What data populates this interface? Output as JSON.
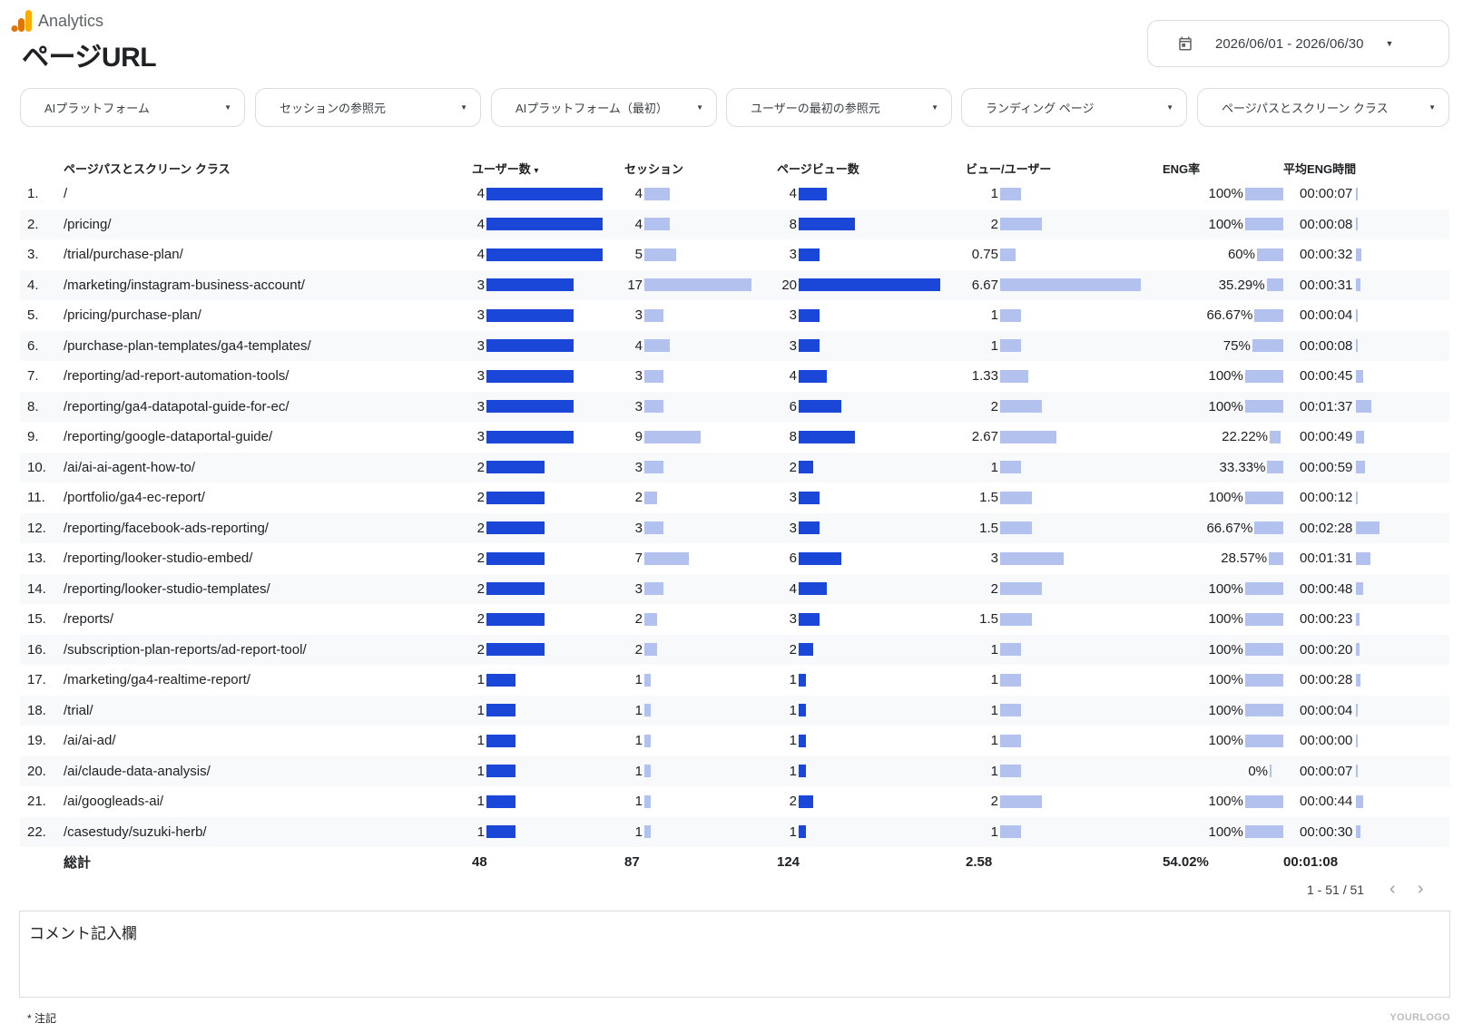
{
  "app": {
    "name": "Analytics"
  },
  "page": {
    "title": "ページURL"
  },
  "date_range": {
    "label": "2026/06/01 - 2026/06/30"
  },
  "filters": [
    "AIプラットフォーム",
    "セッションの参照元",
    "AIプラットフォーム（最初）",
    "ユーザーの最初の参照元",
    "ランディング ページ",
    "ページパスとスクリーン クラス"
  ],
  "table": {
    "headers": [
      "ページパスとスクリーン クラス",
      "ユーザー数",
      "セッション",
      "ページビュー数",
      "ビュー/ユーザー",
      "ENG率",
      "平均ENG時間"
    ],
    "sort_indicator": "▾",
    "rows": [
      {
        "idx": "1.",
        "path": "/",
        "users": "4",
        "sessions": "4",
        "views": "4",
        "vpu": "1",
        "eng": "100%",
        "time": "00:00:07"
      },
      {
        "idx": "2.",
        "path": "/pricing/",
        "users": "4",
        "sessions": "4",
        "views": "8",
        "vpu": "2",
        "eng": "100%",
        "time": "00:00:08"
      },
      {
        "idx": "3.",
        "path": "/trial/purchase-plan/",
        "users": "4",
        "sessions": "5",
        "views": "3",
        "vpu": "0.75",
        "eng": "60%",
        "time": "00:00:32"
      },
      {
        "idx": "4.",
        "path": "/marketing/instagram-business-account/",
        "users": "3",
        "sessions": "17",
        "views": "20",
        "vpu": "6.67",
        "eng": "35.29%",
        "time": "00:00:31"
      },
      {
        "idx": "5.",
        "path": "/pricing/purchase-plan/",
        "users": "3",
        "sessions": "3",
        "views": "3",
        "vpu": "1",
        "eng": "66.67%",
        "time": "00:00:04"
      },
      {
        "idx": "6.",
        "path": "/purchase-plan-templates/ga4-templates/",
        "users": "3",
        "sessions": "4",
        "views": "3",
        "vpu": "1",
        "eng": "75%",
        "time": "00:00:08"
      },
      {
        "idx": "7.",
        "path": "/reporting/ad-report-automation-tools/",
        "users": "3",
        "sessions": "3",
        "views": "4",
        "vpu": "1.33",
        "eng": "100%",
        "time": "00:00:45"
      },
      {
        "idx": "8.",
        "path": "/reporting/ga4-datapotal-guide-for-ec/",
        "users": "3",
        "sessions": "3",
        "views": "6",
        "vpu": "2",
        "eng": "100%",
        "time": "00:01:37"
      },
      {
        "idx": "9.",
        "path": "/reporting/google-dataportal-guide/",
        "users": "3",
        "sessions": "9",
        "views": "8",
        "vpu": "2.67",
        "eng": "22.22%",
        "time": "00:00:49"
      },
      {
        "idx": "10.",
        "path": "/ai/ai-ai-agent-how-to/",
        "users": "2",
        "sessions": "3",
        "views": "2",
        "vpu": "1",
        "eng": "33.33%",
        "time": "00:00:59"
      },
      {
        "idx": "11.",
        "path": "/portfolio/ga4-ec-report/",
        "users": "2",
        "sessions": "2",
        "views": "3",
        "vpu": "1.5",
        "eng": "100%",
        "time": "00:00:12"
      },
      {
        "idx": "12.",
        "path": "/reporting/facebook-ads-reporting/",
        "users": "2",
        "sessions": "3",
        "views": "3",
        "vpu": "1.5",
        "eng": "66.67%",
        "time": "00:02:28"
      },
      {
        "idx": "13.",
        "path": "/reporting/looker-studio-embed/",
        "users": "2",
        "sessions": "7",
        "views": "6",
        "vpu": "3",
        "eng": "28.57%",
        "time": "00:01:31"
      },
      {
        "idx": "14.",
        "path": "/reporting/looker-studio-templates/",
        "users": "2",
        "sessions": "3",
        "views": "4",
        "vpu": "2",
        "eng": "100%",
        "time": "00:00:48"
      },
      {
        "idx": "15.",
        "path": "/reports/",
        "users": "2",
        "sessions": "2",
        "views": "3",
        "vpu": "1.5",
        "eng": "100%",
        "time": "00:00:23"
      },
      {
        "idx": "16.",
        "path": "/subscription-plan-reports/ad-report-tool/",
        "users": "2",
        "sessions": "2",
        "views": "2",
        "vpu": "1",
        "eng": "100%",
        "time": "00:00:20"
      },
      {
        "idx": "17.",
        "path": "/marketing/ga4-realtime-report/",
        "users": "1",
        "sessions": "1",
        "views": "1",
        "vpu": "1",
        "eng": "100%",
        "time": "00:00:28"
      },
      {
        "idx": "18.",
        "path": "/trial/",
        "users": "1",
        "sessions": "1",
        "views": "1",
        "vpu": "1",
        "eng": "100%",
        "time": "00:00:04"
      },
      {
        "idx": "19.",
        "path": "/ai/ai-ad/",
        "users": "1",
        "sessions": "1",
        "views": "1",
        "vpu": "1",
        "eng": "100%",
        "time": "00:00:00"
      },
      {
        "idx": "20.",
        "path": "/ai/claude-data-analysis/",
        "users": "1",
        "sessions": "1",
        "views": "1",
        "vpu": "1",
        "eng": "0%",
        "time": "00:00:07"
      },
      {
        "idx": "21.",
        "path": "/ai/googleads-ai/",
        "users": "1",
        "sessions": "1",
        "views": "2",
        "vpu": "2",
        "eng": "100%",
        "time": "00:00:44"
      },
      {
        "idx": "22.",
        "path": "/casestudy/suzuki-herb/",
        "users": "1",
        "sessions": "1",
        "views": "1",
        "vpu": "1",
        "eng": "100%",
        "time": "00:00:30"
      }
    ],
    "totals": {
      "label": "総計",
      "users": "48",
      "sessions": "87",
      "views": "124",
      "vpu": "2.58",
      "eng": "54.02%",
      "time": "00:01:08"
    }
  },
  "pagination": {
    "label": "1 - 51 / 51"
  },
  "comment": {
    "title": "コメント記入欄"
  },
  "footer": {
    "note": "* 注記",
    "logo": "YOURLOGO"
  },
  "colors": {
    "bar_dark": "#1a47d8",
    "bar_light": "#b3c1ee",
    "logo_orange": "#f9ab00",
    "logo_dark_orange": "#e37400"
  }
}
